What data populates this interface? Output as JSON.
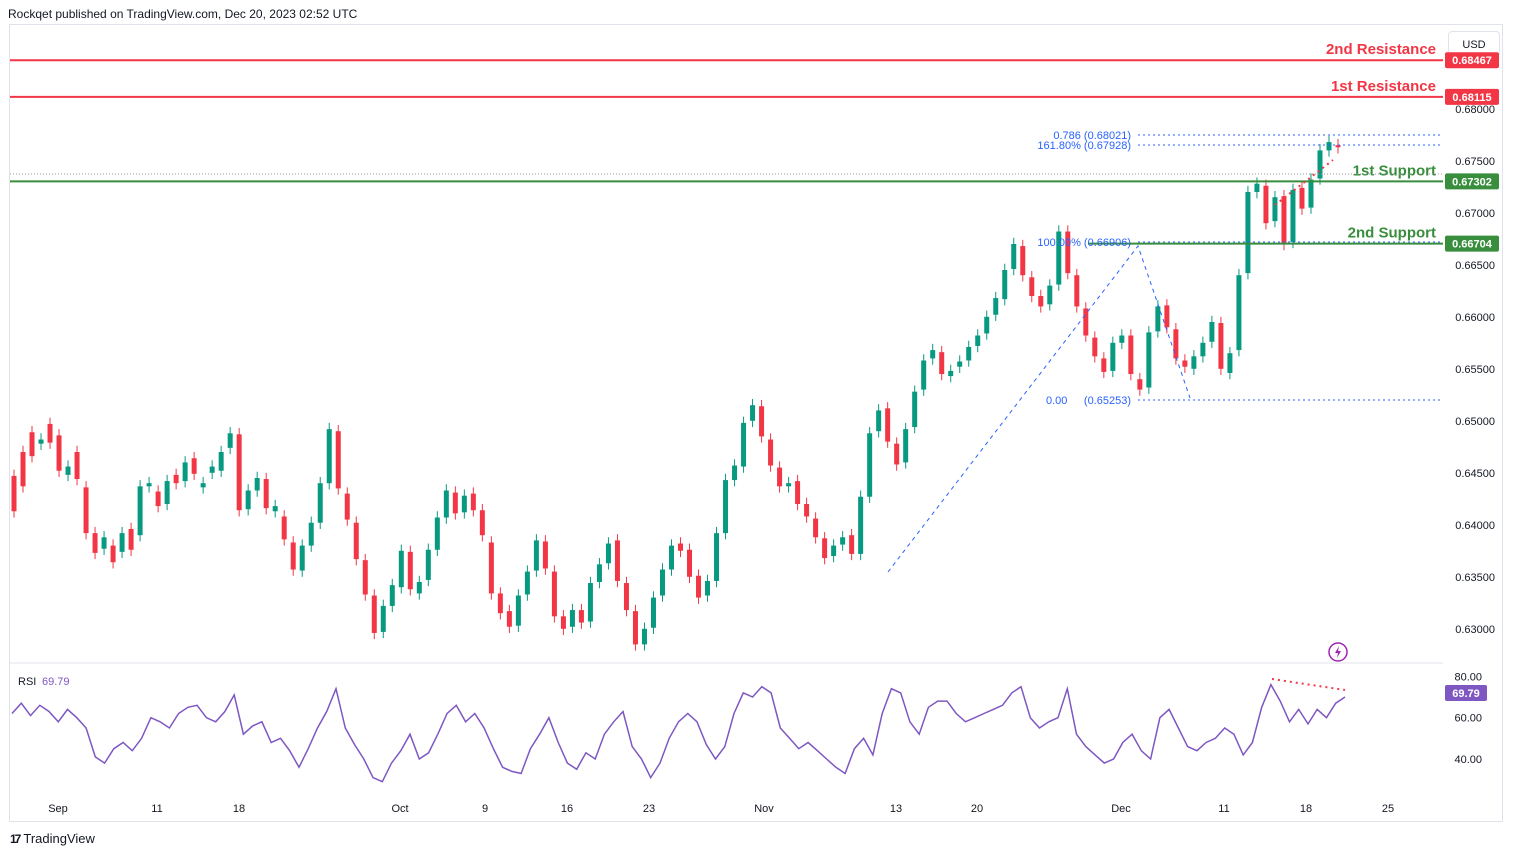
{
  "publisher_line": "Rockqet published on TradingView.com, Dec 20, 2023 02:52 UTC",
  "currency_button": "USD",
  "brand": {
    "glyph": "17",
    "name": "TradingView"
  },
  "chart_data": {
    "type": "candlestick",
    "price_axis": {
      "ticks": [
        "0.68000",
        "0.67500",
        "0.67000",
        "0.66500",
        "0.66000",
        "0.65500",
        "0.65000",
        "0.64500",
        "0.64000",
        "0.63500",
        "0.63000"
      ],
      "range": [
        0.627,
        0.6895
      ]
    },
    "time_axis": {
      "ticks": [
        "Sep",
        "11",
        "18",
        "Oct",
        "9",
        "16",
        "23",
        "Nov",
        "13",
        "20",
        "Dec",
        "11",
        "18",
        "25"
      ]
    },
    "candles_approx": [
      [
        0.6447,
        0.6413
      ],
      [
        0.647,
        0.6437
      ],
      [
        0.6489,
        0.6466
      ],
      [
        0.6478,
        0.6482
      ],
      [
        0.6497,
        0.6479
      ],
      [
        0.6486,
        0.6452
      ],
      [
        0.6448,
        0.6456
      ],
      [
        0.647,
        0.6444
      ],
      [
        0.6436,
        0.6392
      ],
      [
        0.6392,
        0.6373
      ],
      [
        0.6377,
        0.6388
      ],
      [
        0.638,
        0.6364
      ],
      [
        0.6374,
        0.6392
      ],
      [
        0.6396,
        0.6376
      ],
      [
        0.639,
        0.6437
      ],
      [
        0.6437,
        0.644
      ],
      [
        0.6432,
        0.6418
      ],
      [
        0.642,
        0.6442
      ],
      [
        0.6448,
        0.644
      ],
      [
        0.6442,
        0.646
      ],
      [
        0.6464,
        0.6449
      ],
      [
        0.6436,
        0.644
      ],
      [
        0.645,
        0.6456
      ],
      [
        0.6452,
        0.647
      ],
      [
        0.6474,
        0.6488
      ],
      [
        0.6487,
        0.6414
      ],
      [
        0.6415,
        0.6433
      ],
      [
        0.6433,
        0.6445
      ],
      [
        0.6444,
        0.6416
      ],
      [
        0.6413,
        0.6418
      ],
      [
        0.6408,
        0.6386
      ],
      [
        0.6383,
        0.6357
      ],
      [
        0.6356,
        0.638
      ],
      [
        0.638,
        0.6402
      ],
      [
        0.6402,
        0.644
      ],
      [
        0.644,
        0.6492
      ],
      [
        0.649,
        0.6435
      ],
      [
        0.643,
        0.6405
      ],
      [
        0.6402,
        0.6367
      ],
      [
        0.6366,
        0.6333
      ],
      [
        0.6332,
        0.6296
      ],
      [
        0.6297,
        0.6322
      ],
      [
        0.6322,
        0.6342
      ],
      [
        0.634,
        0.6375
      ],
      [
        0.6374,
        0.6338
      ],
      [
        0.6334,
        0.6345
      ],
      [
        0.6347,
        0.6376
      ],
      [
        0.6376,
        0.6407
      ],
      [
        0.6407,
        0.6433
      ],
      [
        0.6431,
        0.6411
      ],
      [
        0.6412,
        0.6428
      ],
      [
        0.643,
        0.6414
      ],
      [
        0.6414,
        0.639
      ],
      [
        0.6383,
        0.6334
      ],
      [
        0.6334,
        0.6315
      ],
      [
        0.6317,
        0.6302
      ],
      [
        0.6303,
        0.6332
      ],
      [
        0.6333,
        0.6355
      ],
      [
        0.6356,
        0.6385
      ],
      [
        0.6384,
        0.6358
      ],
      [
        0.6355,
        0.6312
      ],
      [
        0.6312,
        0.63
      ],
      [
        0.6302,
        0.6318
      ],
      [
        0.6318,
        0.6306
      ],
      [
        0.6307,
        0.6344
      ],
      [
        0.6345,
        0.6362
      ],
      [
        0.6363,
        0.6382
      ],
      [
        0.6385,
        0.6346
      ],
      [
        0.6344,
        0.6318
      ],
      [
        0.6317,
        0.6285
      ],
      [
        0.6285,
        0.63
      ],
      [
        0.6301,
        0.633
      ],
      [
        0.6332,
        0.6357
      ],
      [
        0.6357,
        0.638
      ],
      [
        0.6382,
        0.6375
      ],
      [
        0.6376,
        0.635
      ],
      [
        0.6351,
        0.633
      ],
      [
        0.6332,
        0.6346
      ],
      [
        0.6346,
        0.6392
      ],
      [
        0.6392,
        0.6443
      ],
      [
        0.6443,
        0.6457
      ],
      [
        0.6456,
        0.6498
      ],
      [
        0.65,
        0.6515
      ],
      [
        0.6514,
        0.6485
      ],
      [
        0.6482,
        0.6457
      ],
      [
        0.6455,
        0.6437
      ],
      [
        0.6437,
        0.644
      ],
      [
        0.6442,
        0.642
      ],
      [
        0.642,
        0.6408
      ],
      [
        0.6406,
        0.6388
      ],
      [
        0.6387,
        0.6368
      ],
      [
        0.637,
        0.638
      ],
      [
        0.6381,
        0.6388
      ],
      [
        0.639,
        0.6372
      ],
      [
        0.6372,
        0.6427
      ],
      [
        0.6427,
        0.6488
      ],
      [
        0.649,
        0.651
      ],
      [
        0.6512,
        0.648
      ],
      [
        0.6478,
        0.6458
      ],
      [
        0.646,
        0.6492
      ],
      [
        0.6494,
        0.6528
      ],
      [
        0.653,
        0.6558
      ],
      [
        0.656,
        0.6568
      ],
      [
        0.6566,
        0.6545
      ],
      [
        0.6543,
        0.6548
      ],
      [
        0.6552,
        0.6557
      ],
      [
        0.6558,
        0.6571
      ],
      [
        0.6572,
        0.6582
      ],
      [
        0.6584,
        0.66
      ],
      [
        0.6602,
        0.6618
      ],
      [
        0.6617,
        0.6645
      ],
      [
        0.6646,
        0.667
      ],
      [
        0.6668,
        0.664
      ],
      [
        0.6638,
        0.662
      ],
      [
        0.662,
        0.661
      ],
      [
        0.6612,
        0.663
      ],
      [
        0.6631,
        0.6682
      ],
      [
        0.6682,
        0.6642
      ],
      [
        0.664,
        0.661
      ],
      [
        0.6608,
        0.6582
      ],
      [
        0.658,
        0.6562
      ],
      [
        0.656,
        0.6547
      ],
      [
        0.6548,
        0.6575
      ],
      [
        0.6575,
        0.6582
      ],
      [
        0.6582,
        0.6545
      ],
      [
        0.654,
        0.653
      ],
      [
        0.6532,
        0.6585
      ],
      [
        0.6586,
        0.661
      ],
      [
        0.6611,
        0.659
      ],
      [
        0.6588,
        0.656
      ],
      [
        0.6558,
        0.6552
      ],
      [
        0.655,
        0.6562
      ],
      [
        0.6562,
        0.6575
      ],
      [
        0.6576,
        0.6595
      ],
      [
        0.6594,
        0.655
      ],
      [
        0.6546,
        0.6565
      ],
      [
        0.6568,
        0.664
      ],
      [
        0.6642,
        0.672
      ],
      [
        0.672,
        0.6728
      ],
      [
        0.6726,
        0.669
      ],
      [
        0.6692,
        0.6715
      ],
      [
        0.6716,
        0.667
      ],
      [
        0.6672,
        0.6722
      ],
      [
        0.6724,
        0.6704
      ],
      [
        0.6705,
        0.6732
      ],
      [
        0.6733,
        0.676
      ],
      [
        0.676,
        0.6768
      ],
      [
        0.6765,
        0.6763
      ]
    ],
    "levels": [
      {
        "label": "2nd Resistance",
        "value": "0.68467",
        "price": 0.68467,
        "color": "#f23645"
      },
      {
        "label": "1st Resistance",
        "value": "0.68115",
        "price": 0.68115,
        "color": "#f23645"
      },
      {
        "label": "1st Support",
        "value": "0.67302",
        "price": 0.67302,
        "color": "#388e3c"
      },
      {
        "label": "2nd Support",
        "value": "0.66704",
        "price": 0.66704,
        "color": "#388e3c"
      }
    ],
    "fib_levels": [
      {
        "label": "0.786 (0.68021)",
        "price": 0.68021
      },
      {
        "label": "161.80% (0.67928)",
        "price": 0.67928
      },
      {
        "label": "100.00% (0.66906)",
        "price": 0.66906
      },
      {
        "label": "0.00",
        "price_label": "(0.65253)",
        "price": 0.65253
      }
    ],
    "rsi": {
      "label": "RSI",
      "value": "69.79",
      "color": "#7e57c2",
      "ticks": [
        "80.00",
        "60.00",
        "40.00"
      ],
      "range": [
        25,
        85
      ],
      "values_approx": [
        62,
        67,
        61,
        66,
        63,
        58,
        64,
        60,
        55,
        41,
        38,
        45,
        48,
        44,
        50,
        60,
        58,
        55,
        62,
        65,
        66,
        60,
        58,
        63,
        71,
        52,
        56,
        58,
        48,
        50,
        44,
        36,
        45,
        55,
        63,
        74,
        55,
        47,
        40,
        31,
        29,
        38,
        44,
        52,
        40,
        43,
        52,
        62,
        66,
        58,
        62,
        55,
        45,
        36,
        34,
        33,
        45,
        52,
        60,
        48,
        38,
        35,
        43,
        40,
        52,
        58,
        63,
        46,
        40,
        31,
        38,
        50,
        58,
        62,
        58,
        47,
        40,
        46,
        62,
        72,
        70,
        75,
        72,
        55,
        50,
        45,
        48,
        44,
        40,
        36,
        33,
        45,
        50,
        42,
        62,
        74,
        72,
        58,
        52,
        65,
        68,
        68,
        62,
        58,
        60,
        62,
        64,
        66,
        72,
        75,
        60,
        55,
        58,
        60,
        74,
        52,
        46,
        42,
        38,
        40,
        48,
        52,
        44,
        40,
        60,
        64,
        55,
        46,
        44,
        48,
        50,
        55,
        52,
        42,
        48,
        65,
        76,
        68,
        58,
        64,
        57,
        64,
        60,
        67,
        70
      ]
    }
  }
}
